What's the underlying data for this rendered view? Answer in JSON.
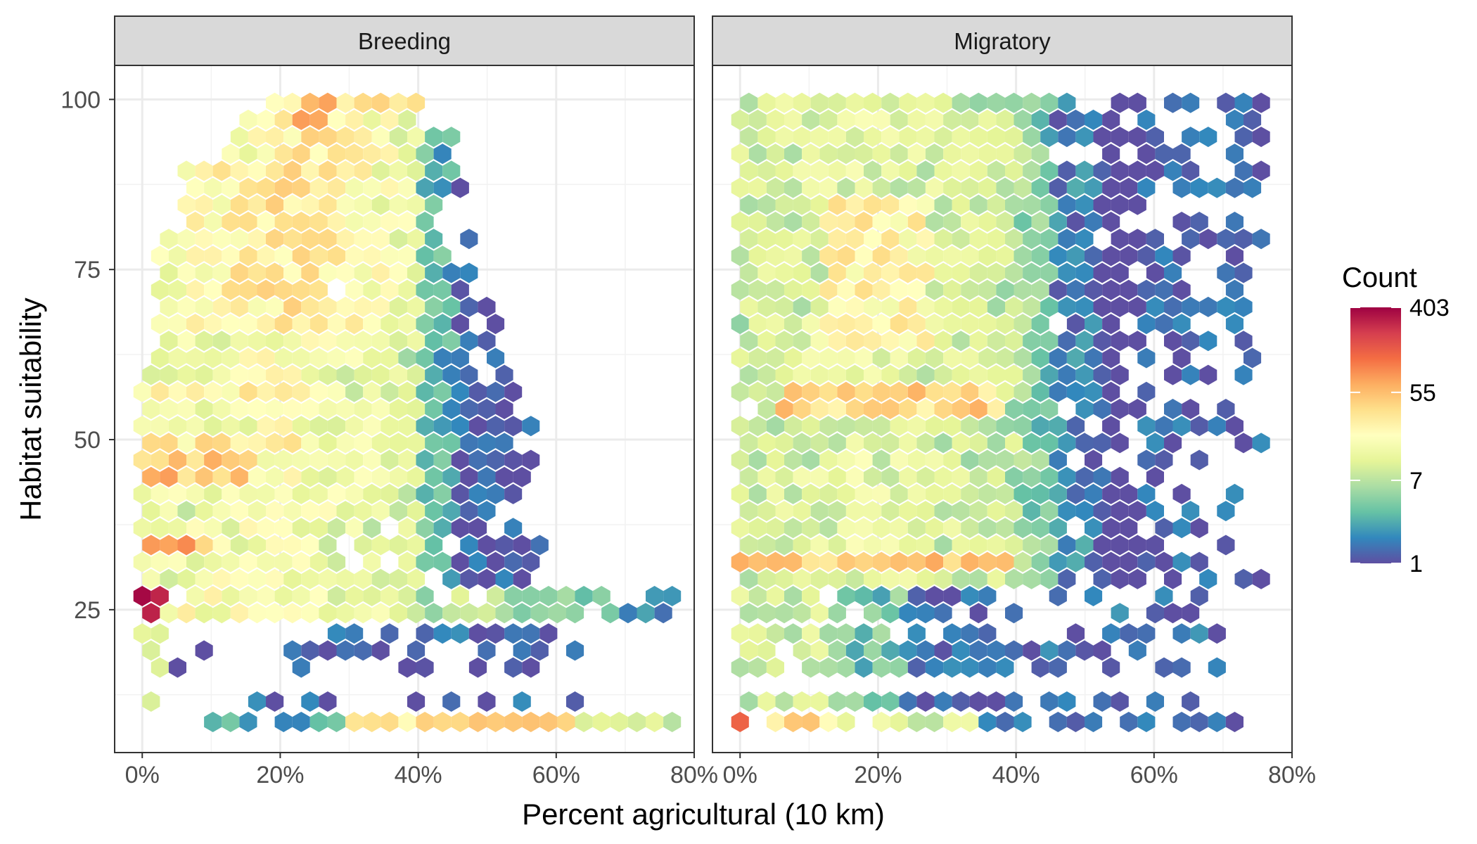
{
  "chart_data": {
    "type": "heatmap",
    "subtype": "hexbin",
    "facets": [
      {
        "name": "Breeding",
        "regions": [
          {
            "x": [
              0.2,
              3.0
            ],
            "y": [
              24,
              29
            ],
            "count": 300
          },
          {
            "x": [
              1.0,
              9.0
            ],
            "y": [
              33,
              37
            ],
            "count": 60
          },
          {
            "x": [
              0.5,
              16.0
            ],
            "y": [
              43,
              47
            ],
            "count": 50
          },
          {
            "x": [
              2.0,
              22.0
            ],
            "y": [
              48,
              52
            ],
            "count": 30
          },
          {
            "x": [
              4.0,
              30.0
            ],
            "y": [
              55,
              59
            ],
            "count": 25
          },
          {
            "x": [
              12.0,
              24.0
            ],
            "y": [
              76,
              96
            ],
            "count": 28
          },
          {
            "x": [
              22.0,
              28.0
            ],
            "y": [
              95,
              99
            ],
            "count": 55
          },
          {
            "x": [
              0.0,
              33.0
            ],
            "y": [
              24,
              28
            ],
            "count": 15
          },
          {
            "x": [
              30.0,
              62.0
            ],
            "y": [
              6,
              10
            ],
            "count": 35
          },
          {
            "x": [
              20.0,
              45.0
            ],
            "y": [
              10,
              25
            ],
            "count": 1
          }
        ]
      },
      {
        "name": "Migratory",
        "regions": [
          {
            "x": [
              0.0,
              45.0
            ],
            "y": [
              30,
              34
            ],
            "count": 45
          },
          {
            "x": [
              8.0,
              38.0
            ],
            "y": [
              54,
              58
            ],
            "count": 40
          },
          {
            "x": [
              0.5,
              3.0
            ],
            "y": [
              6,
              10
            ],
            "count": 120
          },
          {
            "x": [
              14.0,
              28.0
            ],
            "y": [
              65,
              85
            ],
            "count": 22
          },
          {
            "x": [
              0.0,
              40.0
            ],
            "y": [
              35,
              97
            ],
            "count": 12
          },
          {
            "x": [
              45.0,
              60.0
            ],
            "y": [
              35,
              80
            ],
            "count": 2
          },
          {
            "x": [
              45.0,
              75.0
            ],
            "y": [
              6,
              28
            ],
            "count": 1
          }
        ]
      }
    ],
    "xlabel": "Percent agricultural (10 km)",
    "ylabel": "Habitat suitability",
    "xlim": [
      -4,
      80
    ],
    "ylim": [
      4,
      105
    ],
    "xticks": [
      "0%",
      "20%",
      "40%",
      "60%",
      "80%"
    ],
    "yticks": [
      "25",
      "50",
      "75",
      "100"
    ],
    "legend": {
      "title": "Count",
      "labels": [
        "403",
        "55",
        "7",
        "1"
      ],
      "scale": "log",
      "position": "right",
      "colors": [
        "#9E0142",
        "#D53E4F",
        "#F46D43",
        "#FDAE61",
        "#FEE08B",
        "#FFFFBF",
        "#E6F598",
        "#ABDDA4",
        "#66C2A5",
        "#3288BD",
        "#5E4FA2"
      ]
    },
    "grid": true
  }
}
